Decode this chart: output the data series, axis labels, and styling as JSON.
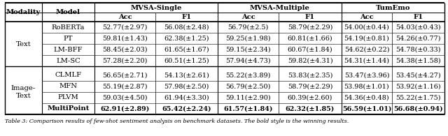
{
  "col_headers_top": [
    "MVSA-Single",
    "MVSA-Multiple",
    "TumEmo"
  ],
  "col_headers_sub": [
    "Acc",
    "F1",
    "Acc",
    "F1",
    "Acc",
    "F1"
  ],
  "rows_text": [
    [
      "RoBERTa",
      "52.77(±2.97)",
      "56.08(±2.48)",
      "56.79(±2.5)",
      "58.79(±2.29)",
      "54.00(±0.44)",
      "54.03(±0.43)"
    ],
    [
      "PT",
      "59.81(±1.43)",
      "62.38(±1.25)",
      "59.25(±1.98)",
      "60.81(±1.66)",
      "54.19(±0.81)",
      "54.26(±0.77)"
    ],
    [
      "LM-BFF",
      "58.45(±2.03)",
      "61.65(±1.67)",
      "59.15(±2.34)",
      "60.67(±1.84)",
      "54.62(±0.22)",
      "54.78(±0.33)"
    ],
    [
      "LM-SC",
      "57.28(±2.20)",
      "60.51(±1.25)",
      "57.94(±4.73)",
      "59.82(±4.31)",
      "54.31(±1.44)",
      "54.38(±1.58)"
    ]
  ],
  "rows_img": [
    [
      "CLMLF",
      "56.65(±2.71)",
      "54.13(±2.61)",
      "55.22(±3.89)",
      "53.83(±2.35)",
      "53.47(±3.96)",
      "53.45(±4.27)"
    ],
    [
      "MFN",
      "55.19(±2.87)",
      "57.98(±2.50)",
      "56.79(±2.50)",
      "58.79(±2.29)",
      "53.98(±1.01)",
      "53.92(±1.16)"
    ],
    [
      "PLVM",
      "59.03(±4.50)",
      "61.94(±3.30)",
      "59.11(±2.90)",
      "60.39(±2.60)",
      "54.36(±0.48)",
      "55.22(±1.75)"
    ],
    [
      "MultiPoint",
      "62.91(±2.89)",
      "65.42(±2.24)",
      "61.57(±1.84)",
      "62.32(±1.85)",
      "56.59(±1.01)",
      "56.68(±0.94)"
    ]
  ],
  "modality_text": "Text",
  "modality_img": "Image-\nText",
  "bold_row": "MultiPoint",
  "caption": "Table 3: Comparison results of few-shot sentiment analysis on benchmark datasets. The bold style is the winning results.",
  "bg_color": "#ffffff",
  "font_size": 7.2,
  "caption_font_size": 5.8
}
